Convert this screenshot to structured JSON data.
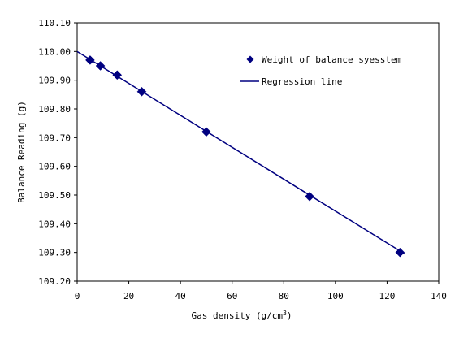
{
  "chart_data": {
    "type": "scatter",
    "xlabel": "Gas density (g/cm",
    "xlabel_superscript": "3",
    "xlabel_suffix": ")",
    "ylabel": "Balance Reading (g)",
    "xlim": [
      0,
      140
    ],
    "ylim": [
      109.2,
      110.1
    ],
    "x_ticks": [
      "0",
      "20",
      "40",
      "60",
      "80",
      "100",
      "120",
      "140"
    ],
    "y_ticks": [
      "109.20",
      "109.30",
      "109.40",
      "109.50",
      "109.60",
      "109.70",
      "109.80",
      "109.90",
      "110.00",
      "110.10"
    ],
    "grid": false,
    "legend_placement": "top-right",
    "series": [
      {
        "name": "Weight of balance syesstem",
        "kind": "scatter",
        "marker": "diamond",
        "color": "#000080",
        "x": [
          5,
          9,
          15.5,
          25,
          50,
          90,
          125
        ],
        "y": [
          109.97,
          109.95,
          109.918,
          109.86,
          109.72,
          109.495,
          109.3
        ]
      },
      {
        "name": "Regression line",
        "kind": "line",
        "color": "#000080",
        "x": [
          0,
          127
        ],
        "y": [
          110.0,
          109.294
        ]
      }
    ]
  }
}
